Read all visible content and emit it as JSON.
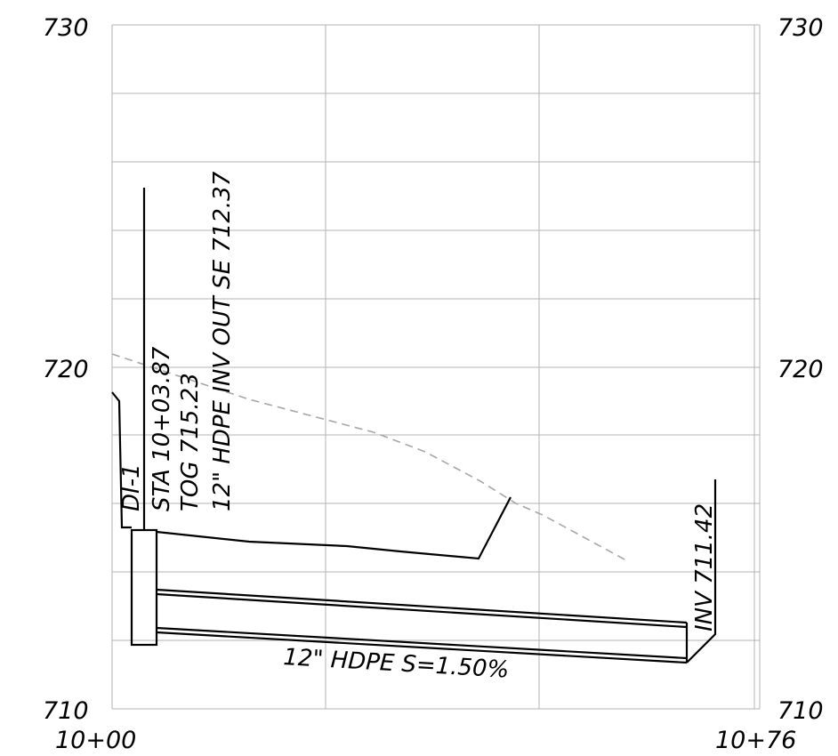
{
  "profile": {
    "axis": {
      "elevation_top_left": "730",
      "elevation_top_right": "730",
      "elevation_mid_left": "720",
      "elevation_mid_right": "720",
      "elevation_bottom_left": "710",
      "elevation_bottom_right": "710",
      "station_start": "10+00",
      "station_end": "10+76"
    },
    "structure_label": "DI-1",
    "structure_callout": {
      "line1": "STA  10+03.87",
      "line2": "TOG  715.23",
      "line3": "12\"  HDPE INV OUT SE  712.37"
    },
    "pipe_label": "12\"  HDPE  S=1.50%",
    "outlet_label": "INV  711.42",
    "colors": {
      "ink": "#000000",
      "grid": "#b3b3b3",
      "existing_ground": "#a6a6a6"
    }
  }
}
